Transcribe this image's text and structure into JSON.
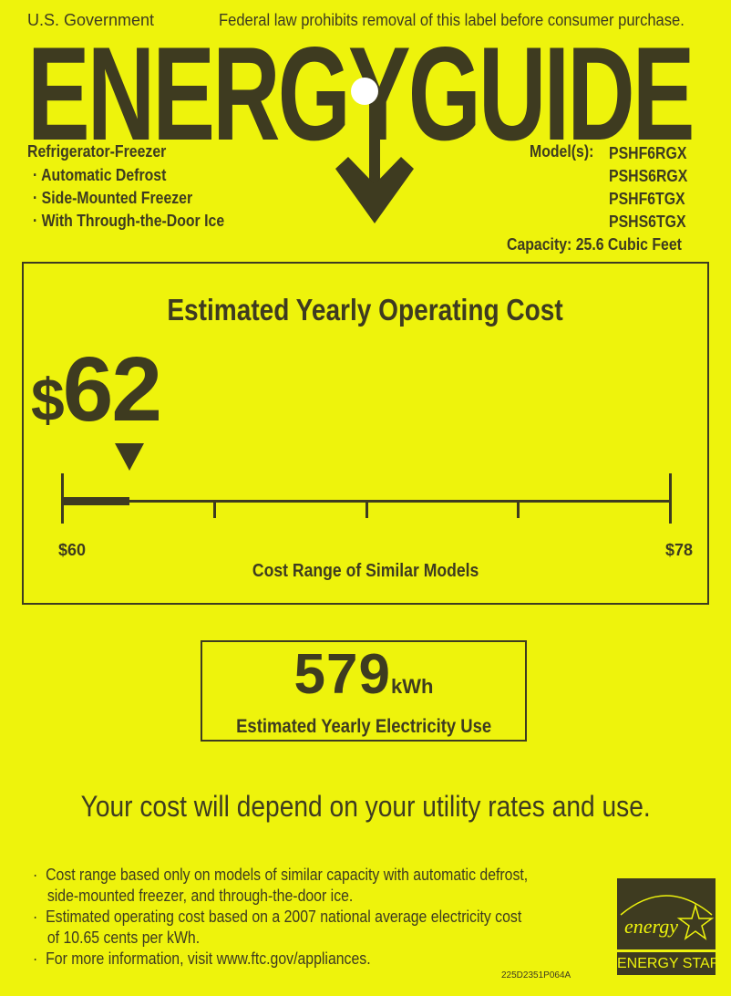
{
  "header": {
    "left": "U.S. Government",
    "right": "Federal law prohibits removal of this label before consumer purchase."
  },
  "logo": "ENERGYGUIDE",
  "product": {
    "type": "Refrigerator-Freezer",
    "features": [
      "Automatic Defrost",
      "Side-Mounted Freezer",
      "With Through-the-Door Ice"
    ]
  },
  "models": {
    "label": "Model(s):",
    "list": [
      "PSHF6RGX",
      "PSHS6RGX",
      "PSHF6TGX",
      "PSHS6TGX"
    ],
    "capacity": "Capacity: 25.6 Cubic Feet"
  },
  "cost": {
    "title": "Estimated Yearly Operating Cost",
    "currency": "$",
    "value": "62",
    "min_label": "$60",
    "max_label": "$78",
    "min": 60,
    "max": 78,
    "amount": 62,
    "range_label": "Cost Range of Similar Models"
  },
  "usage": {
    "value": "579",
    "unit": "kWh",
    "label": "Estimated Yearly Electricity Use"
  },
  "disclaimer": "Your cost will depend on your utility rates and use.",
  "notes": [
    "Cost range based only on models of similar capacity with automatic defrost,",
    "side-mounted freezer, and through-the-door ice.",
    "Estimated operating cost based on a 2007 national average electricity cost",
    "of 10.65 cents per kWh.",
    "For more information, visit www.ftc.gov/appliances."
  ],
  "code": "225D2351P064A",
  "energy_star": {
    "script": "energy",
    "label": "ENERGY STAR"
  },
  "colors": {
    "background": "#eef30c",
    "ink": "#3e3b20"
  }
}
